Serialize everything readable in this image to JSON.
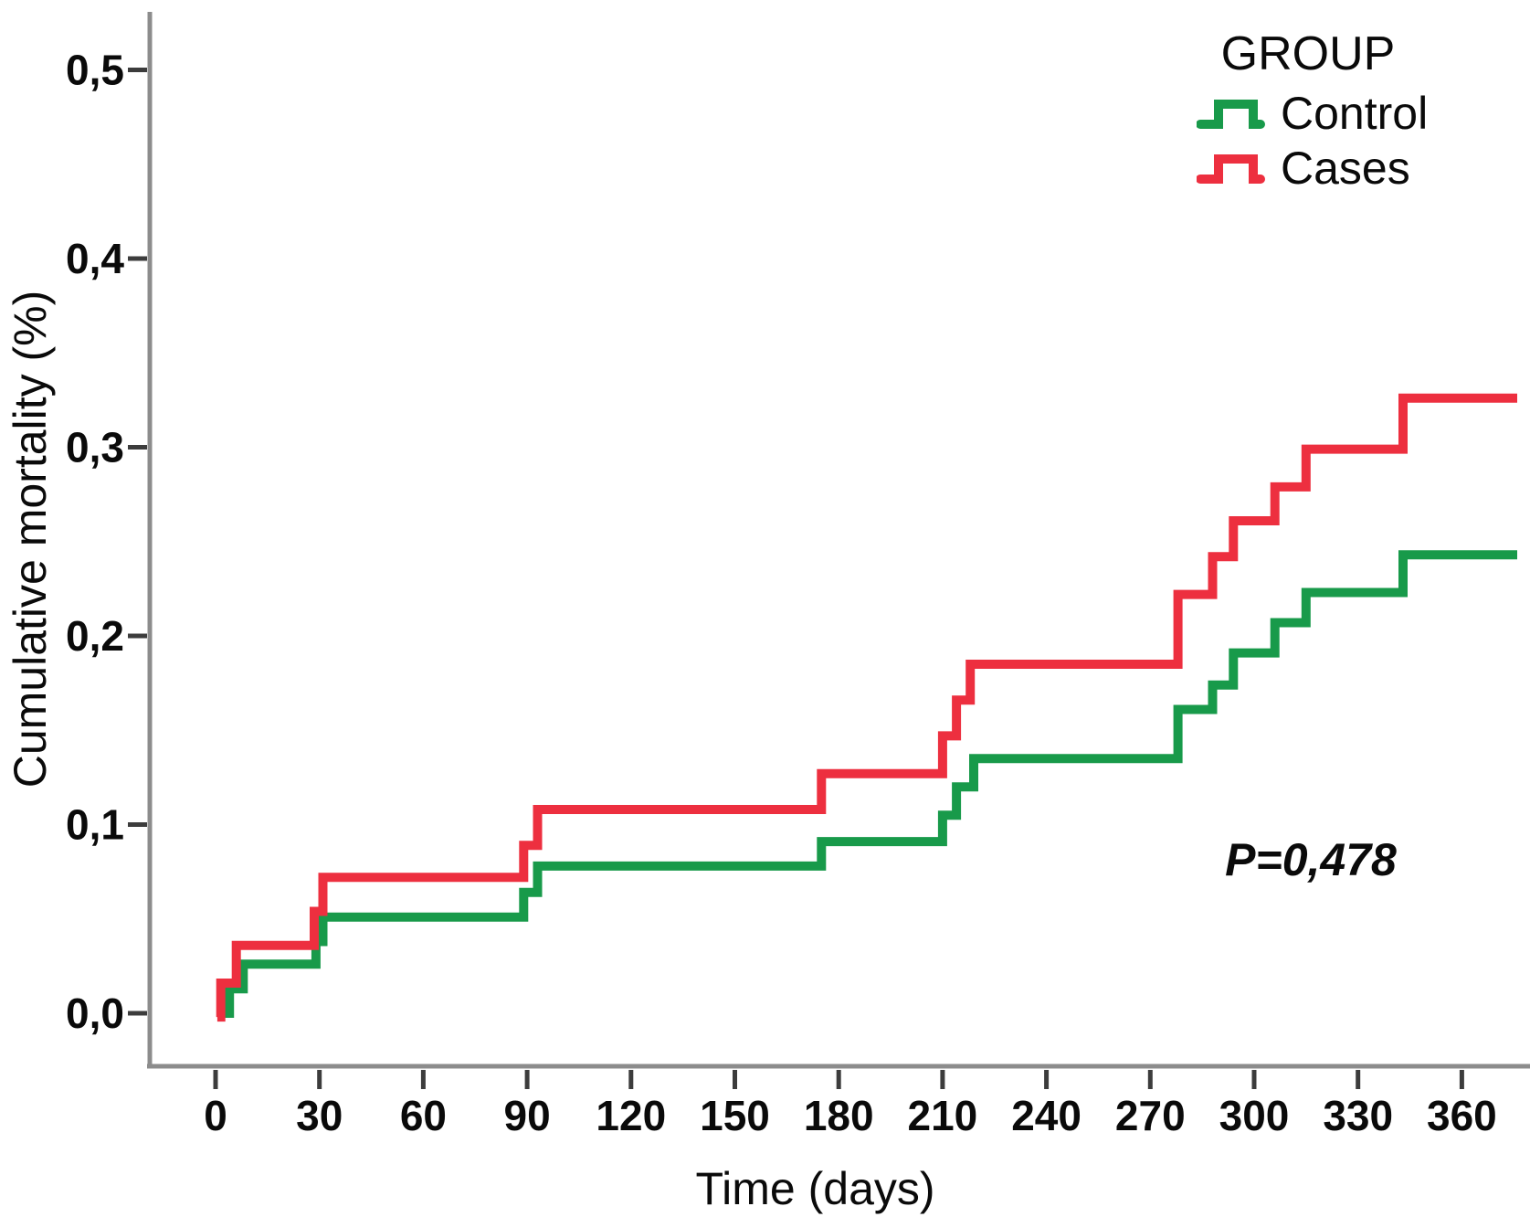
{
  "chart_data": {
    "type": "line",
    "subtype": "step",
    "title": "",
    "xlabel": "Time (days)",
    "ylabel": "Cumulative mortality (%)",
    "annotation": "P=0,478",
    "grid": false,
    "xlim": [
      -19,
      379
    ],
    "ylim": [
      -0.028,
      0.53
    ],
    "x_end": 376,
    "x_ticks": [
      0,
      30,
      60,
      90,
      120,
      150,
      180,
      210,
      240,
      270,
      300,
      330,
      360
    ],
    "x_tick_labels": [
      "0",
      "30",
      "60",
      "90",
      "120",
      "150",
      "180",
      "210",
      "240",
      "270",
      "300",
      "330",
      "360"
    ],
    "y_ticks": [
      0,
      0.1,
      0.2,
      0.3,
      0.4,
      0.5
    ],
    "y_tick_labels": [
      "0,0",
      "0,1",
      "0,2",
      "0,3",
      "0,4",
      "0,5"
    ],
    "legend": {
      "title": "GROUP",
      "position": "top-right",
      "entries": [
        {
          "label": "Control",
          "color": "#189a4a"
        },
        {
          "label": "Cases",
          "color": "#ed2f3f"
        }
      ]
    },
    "series": [
      {
        "name": "Control",
        "color": "#189a4a",
        "points": [
          [
            2.5,
            0
          ],
          [
            4,
            0.013
          ],
          [
            8,
            0.026
          ],
          [
            29,
            0.038
          ],
          [
            31,
            0.051
          ],
          [
            89,
            0.064
          ],
          [
            93,
            0.078
          ],
          [
            175,
            0.091
          ],
          [
            210,
            0.105
          ],
          [
            214,
            0.12
          ],
          [
            219,
            0.135
          ],
          [
            278,
            0.161
          ],
          [
            288,
            0.174
          ],
          [
            294,
            0.191
          ],
          [
            306,
            0.207
          ],
          [
            315,
            0.223
          ],
          [
            343,
            0.243
          ]
        ]
      },
      {
        "name": "Cases",
        "color": "#ed2f3f",
        "points": [
          [
            0.5,
            -0.002
          ],
          [
            1.5,
            0.016
          ],
          [
            6,
            0.036
          ],
          [
            28.5,
            0.054
          ],
          [
            31,
            0.072
          ],
          [
            89,
            0.089
          ],
          [
            93,
            0.108
          ],
          [
            175,
            0.127
          ],
          [
            210,
            0.147
          ],
          [
            214,
            0.166
          ],
          [
            218,
            0.185
          ],
          [
            278,
            0.222
          ],
          [
            288,
            0.242
          ],
          [
            294,
            0.261
          ],
          [
            306,
            0.279
          ],
          [
            315,
            0.299
          ],
          [
            343,
            0.326
          ]
        ]
      }
    ]
  }
}
